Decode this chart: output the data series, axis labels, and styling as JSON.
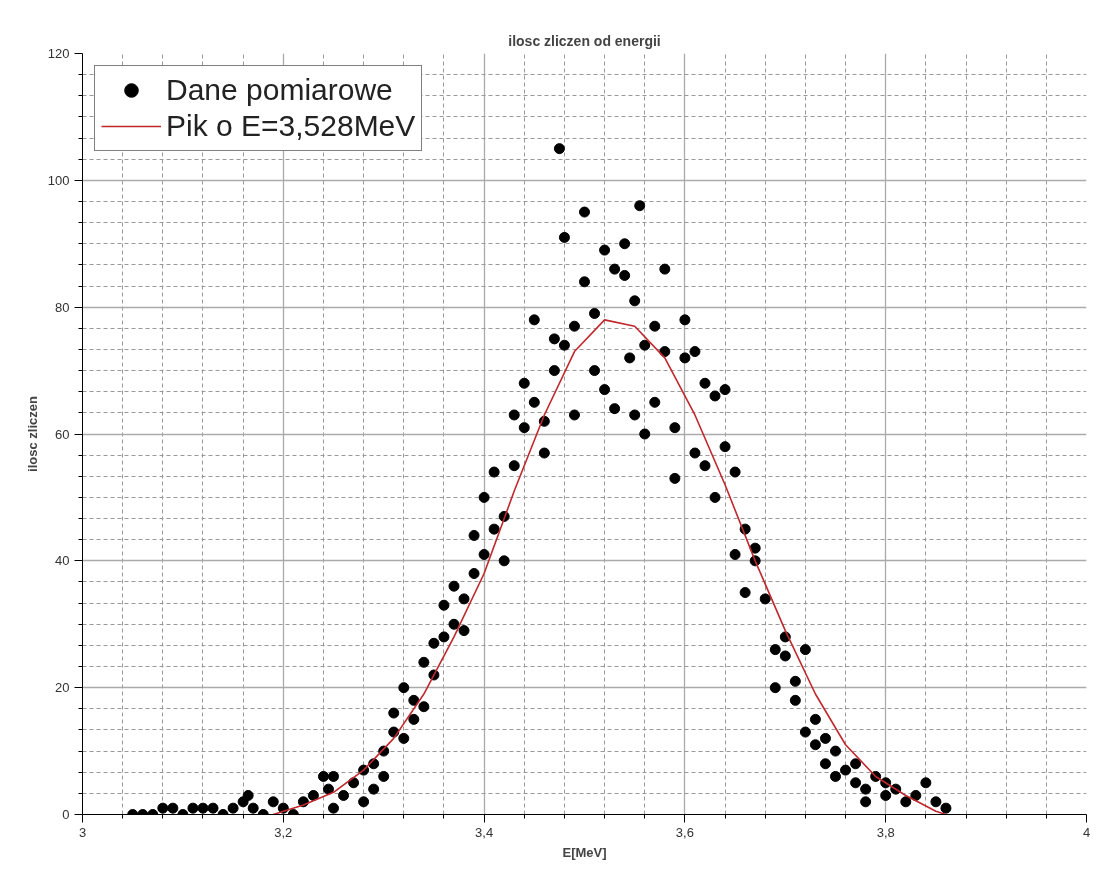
{
  "chart_data": {
    "type": "scatter",
    "title": "ilosc zliczen od energii",
    "xlabel": "E[MeV]",
    "ylabel": "ilosc zliczen",
    "xlim": [
      3,
      4
    ],
    "ylim": [
      0,
      120
    ],
    "xticks": [
      {
        "value": 3,
        "label": "3"
      },
      {
        "value": 3.04,
        "label": null
      },
      {
        "value": 3.08,
        "label": null
      },
      {
        "value": 3.12,
        "label": null
      },
      {
        "value": 3.16,
        "label": null
      },
      {
        "value": 3.2,
        "label": "3,2"
      },
      {
        "value": 3.24,
        "label": null
      },
      {
        "value": 3.28,
        "label": null
      },
      {
        "value": 3.32,
        "label": null
      },
      {
        "value": 3.36,
        "label": null
      },
      {
        "value": 3.4,
        "label": "3,4"
      },
      {
        "value": 3.44,
        "label": null
      },
      {
        "value": 3.48,
        "label": null
      },
      {
        "value": 3.52,
        "label": null
      },
      {
        "value": 3.56,
        "label": null
      },
      {
        "value": 3.6,
        "label": "3,6"
      },
      {
        "value": 3.64,
        "label": null
      },
      {
        "value": 3.68,
        "label": null
      },
      {
        "value": 3.72,
        "label": null
      },
      {
        "value": 3.76,
        "label": null
      },
      {
        "value": 3.8,
        "label": "3,8"
      },
      {
        "value": 3.84,
        "label": null
      },
      {
        "value": 3.88,
        "label": null
      },
      {
        "value": 3.92,
        "label": null
      },
      {
        "value": 3.96,
        "label": null
      },
      {
        "value": 4,
        "label": "4"
      }
    ],
    "yticks": [
      0,
      {
        "value": 3.33,
        "label": null
      },
      {
        "value": 6.67,
        "label": null
      },
      {
        "value": 10,
        "label": null
      },
      {
        "value": 13.33,
        "label": null
      },
      {
        "value": 16.67,
        "label": null
      },
      20,
      {
        "value": 23.33,
        "label": null
      },
      {
        "value": 26.67,
        "label": null
      },
      {
        "value": 30,
        "label": null
      },
      {
        "value": 33.33,
        "label": null
      },
      {
        "value": 36.67,
        "label": null
      },
      40,
      {
        "value": 43.33,
        "label": null
      },
      {
        "value": 46.67,
        "label": null
      },
      {
        "value": 50,
        "label": null
      },
      {
        "value": 53.33,
        "label": null
      },
      {
        "value": 56.67,
        "label": null
      },
      60,
      {
        "value": 63.33,
        "label": null
      },
      {
        "value": 66.67,
        "label": null
      },
      {
        "value": 70,
        "label": null
      },
      {
        "value": 73.33,
        "label": null
      },
      {
        "value": 76.67,
        "label": null
      },
      80,
      {
        "value": 83.33,
        "label": null
      },
      {
        "value": 86.67,
        "label": null
      },
      {
        "value": 90,
        "label": null
      },
      {
        "value": 93.33,
        "label": null
      },
      {
        "value": 96.67,
        "label": null
      },
      100,
      {
        "value": 103.33,
        "label": null
      },
      {
        "value": 106.67,
        "label": null
      },
      {
        "value": 110,
        "label": null
      },
      {
        "value": 113.33,
        "label": null
      },
      {
        "value": 116.67,
        "label": null
      },
      120
    ],
    "grid": true,
    "legend": "top left",
    "series": [
      {
        "name": "Dane pomiarowe",
        "marker": "circle",
        "color": "#000000",
        "x": [
          3.05,
          3.06,
          3.07,
          3.08,
          3.09,
          3.1,
          3.11,
          3.12,
          3.13,
          3.14,
          3.15,
          3.16,
          3.165,
          3.17,
          3.18,
          3.19,
          3.2,
          3.21,
          3.22,
          3.23,
          3.24,
          3.245,
          3.25,
          3.25,
          3.26,
          3.27,
          3.28,
          3.28,
          3.29,
          3.29,
          3.3,
          3.3,
          3.31,
          3.31,
          3.32,
          3.32,
          3.33,
          3.33,
          3.34,
          3.34,
          3.35,
          3.35,
          3.36,
          3.36,
          3.37,
          3.37,
          3.38,
          3.38,
          3.39,
          3.39,
          3.4,
          3.4,
          3.41,
          3.41,
          3.42,
          3.42,
          3.43,
          3.43,
          3.44,
          3.44,
          3.45,
          3.45,
          3.46,
          3.46,
          3.47,
          3.47,
          3.475,
          3.48,
          3.48,
          3.49,
          3.49,
          3.5,
          3.5,
          3.51,
          3.51,
          3.52,
          3.52,
          3.53,
          3.53,
          3.54,
          3.54,
          3.545,
          3.55,
          3.55,
          3.555,
          3.56,
          3.56,
          3.57,
          3.57,
          3.58,
          3.58,
          3.59,
          3.59,
          3.6,
          3.6,
          3.61,
          3.61,
          3.62,
          3.62,
          3.63,
          3.63,
          3.64,
          3.64,
          3.65,
          3.65,
          3.66,
          3.66,
          3.67,
          3.67,
          3.68,
          3.69,
          3.69,
          3.7,
          3.7,
          3.71,
          3.71,
          3.72,
          3.72,
          3.73,
          3.73,
          3.74,
          3.74,
          3.75,
          3.75,
          3.76,
          3.77,
          3.77,
          3.78,
          3.78,
          3.79,
          3.8,
          3.8,
          3.81,
          3.82,
          3.83,
          3.84,
          3.85,
          3.86
        ],
        "values": [
          0,
          0,
          0,
          1,
          1,
          0,
          1,
          1,
          1,
          0,
          1,
          2,
          3,
          1,
          0,
          2,
          1,
          0,
          2,
          3,
          6,
          4,
          6,
          1,
          3,
          5,
          7,
          2,
          4,
          8,
          6,
          10,
          13,
          16,
          12,
          20,
          15,
          18,
          24,
          17,
          27,
          22,
          28,
          33,
          30,
          36,
          34,
          29,
          38,
          44,
          41,
          50,
          54,
          45,
          47,
          40,
          55,
          63,
          61,
          68,
          65,
          78,
          62,
          57,
          70,
          75,
          105,
          91,
          74,
          77,
          63,
          84,
          95,
          79,
          70,
          89,
          67,
          86,
          64,
          90,
          85,
          72,
          81,
          63,
          96,
          60,
          74,
          77,
          65,
          86,
          73,
          61,
          53,
          78,
          72,
          57,
          73,
          55,
          68,
          66,
          50,
          67,
          58,
          54,
          41,
          45,
          35,
          40,
          42,
          34,
          26,
          20,
          28,
          25,
          21,
          18,
          26,
          13,
          11,
          15,
          8,
          12,
          6,
          10,
          7,
          5,
          8,
          2,
          4,
          6,
          3,
          5,
          4,
          2,
          3,
          5,
          2,
          1
        ]
      },
      {
        "name": "Pik o E=3,528MeV",
        "type": "line",
        "line_style": "solid",
        "color": "#c0282d",
        "x": [
          3.19,
          3.22,
          3.25,
          3.28,
          3.31,
          3.34,
          3.37,
          3.4,
          3.43,
          3.46,
          3.49,
          3.52,
          3.55,
          3.58,
          3.61,
          3.64,
          3.67,
          3.7,
          3.73,
          3.76,
          3.79,
          3.82,
          3.85,
          3.86
        ],
        "values": [
          0,
          1.5,
          3.5,
          7,
          12,
          19,
          28,
          38,
          51,
          63,
          73,
          78,
          77,
          72,
          63,
          52,
          40,
          29,
          19,
          11,
          6,
          3,
          0.5,
          0
        ]
      }
    ]
  }
}
